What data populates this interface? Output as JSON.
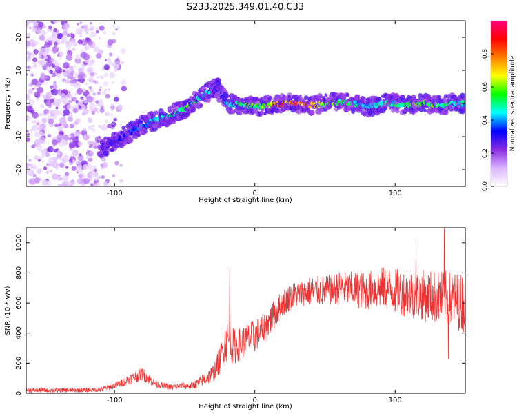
{
  "figure_title": "S233.2025.349.01.40.C33",
  "chart_data": [
    {
      "type": "heatmap",
      "title": "S233.2025.349.01.40.C33",
      "xlabel": "Height of straight line (km)",
      "ylabel": "Frequency (Hz)",
      "xlim": [
        -163,
        150
      ],
      "ylim": [
        -25,
        25
      ],
      "xticks": [
        -100,
        0,
        100
      ],
      "yticks": [
        -20,
        -10,
        0,
        10,
        20
      ],
      "colorbar": {
        "label": "Normalized spectral amplitude",
        "range": [
          0,
          1
        ],
        "ticks": [
          0.0,
          0.2,
          0.4,
          0.6,
          0.8
        ],
        "tick_labels": [
          "0.0",
          "0.2",
          "0.4",
          "0.6",
          "0.8"
        ],
        "colors": [
          "#ffffff",
          "#d9b3ff",
          "#8a2be2",
          "#0000ff",
          "#00ffff",
          "#00ff00",
          "#ffff00",
          "#ff7f00",
          "#ff0000",
          "#ff007f"
        ]
      },
      "ridge": {
        "x": [
          -110,
          -100,
          -90,
          -80,
          -70,
          -60,
          -50,
          -40,
          -30,
          -27,
          -20,
          -10,
          0,
          10,
          20,
          30,
          40,
          50,
          60,
          70,
          80,
          90,
          100,
          110,
          120,
          130,
          140,
          150
        ],
        "y": [
          -14,
          -11.5,
          -9,
          -6.5,
          -5,
          -3.5,
          -1.5,
          1.5,
          4.5,
          5,
          0,
          -0.5,
          -1,
          -0.5,
          0,
          0,
          -0.5,
          0,
          0.5,
          0,
          -1,
          0,
          0,
          -0.5,
          0,
          -0.5,
          0,
          0
        ],
        "amplitude": [
          0.2,
          0.3,
          0.35,
          0.4,
          0.45,
          0.5,
          0.55,
          0.5,
          0.4,
          0.3,
          0.45,
          0.55,
          0.55,
          0.7,
          0.8,
          0.85,
          0.8,
          0.6,
          0.55,
          0.5,
          0.45,
          0.5,
          0.5,
          0.55,
          0.6,
          0.55,
          0.5,
          0.45
        ]
      },
      "noise_region": {
        "x_range": [
          -163,
          -90
        ],
        "y_range": [
          -25,
          25
        ],
        "amplitude_range": [
          0.05,
          0.25
        ]
      }
    },
    {
      "type": "line",
      "xlabel": "Height of straight line (km)",
      "ylabel": "SNR (10 * v/v)",
      "xlim": [
        -163,
        150
      ],
      "ylim": [
        0,
        1100
      ],
      "xticks": [
        -100,
        0,
        100
      ],
      "yticks": [
        0,
        200,
        400,
        600,
        800,
        1000
      ],
      "series": [
        {
          "name": "SNR",
          "color": "#ee3333",
          "x": [
            -163,
            -150,
            -140,
            -130,
            -120,
            -110,
            -100,
            -95,
            -90,
            -85,
            -80,
            -75,
            -70,
            -65,
            -60,
            -55,
            -50,
            -45,
            -40,
            -35,
            -30,
            -25,
            -22,
            -20,
            -18,
            -15,
            -10,
            -5,
            0,
            5,
            10,
            15,
            20,
            25,
            30,
            35,
            40,
            50,
            60,
            70,
            80,
            90,
            100,
            110,
            120,
            130,
            140,
            150
          ],
          "y": [
            20,
            20,
            20,
            20,
            22,
            25,
            50,
            70,
            90,
            110,
            130,
            90,
            60,
            50,
            40,
            45,
            50,
            50,
            70,
            100,
            130,
            220,
            320,
            360,
            330,
            310,
            330,
            360,
            380,
            420,
            470,
            540,
            600,
            640,
            660,
            670,
            680,
            680,
            700,
            690,
            680,
            700,
            680,
            660,
            650,
            640,
            620,
            600
          ],
          "noise_amplitude": [
            15,
            15,
            15,
            15,
            15,
            15,
            20,
            30,
            35,
            40,
            45,
            35,
            25,
            20,
            20,
            20,
            25,
            25,
            35,
            45,
            60,
            90,
            130,
            150,
            140,
            120,
            110,
            110,
            110,
            100,
            100,
            100,
            90,
            90,
            90,
            90,
            100,
            100,
            110,
            120,
            130,
            140,
            150,
            160,
            170,
            180,
            190,
            200
          ],
          "spikes": [
            {
              "x": -18,
              "y": 830
            },
            {
              "x": 115,
              "y": 1010
            },
            {
              "x": 135,
              "y": 1100
            },
            {
              "x": 138,
              "y": 230
            }
          ]
        }
      ]
    }
  ]
}
